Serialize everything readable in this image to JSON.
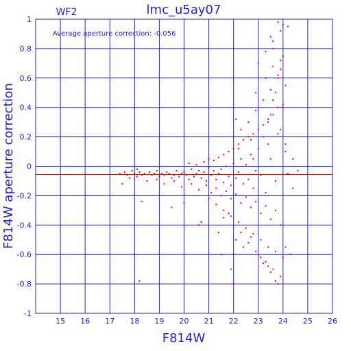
{
  "chart_data": {
    "type": "scatter",
    "title": "lmc_u5ay07",
    "panel_label": "WF2",
    "annotation": "Average aperture correction:  -0.056",
    "xlabel": "F814W",
    "ylabel": "F814W aperture correction",
    "xlim": [
      14,
      26
    ],
    "ylim": [
      -1,
      1
    ],
    "x_ticks": [
      "15",
      "16",
      "17",
      "18",
      "19",
      "20",
      "21",
      "22",
      "23",
      "24",
      "25",
      "26"
    ],
    "y_ticks": [
      "-1",
      "-0.8",
      "-0.6",
      "-0.4",
      "-0.2",
      "0",
      "0.2",
      "0.4",
      "0.6",
      "0.8",
      "1"
    ],
    "grid": true,
    "reference_lines": [
      {
        "y": 0,
        "color": "#0000cc"
      },
      {
        "y": -0.056,
        "color": "#dd0000"
      }
    ],
    "colors": {
      "axes": "#2222cc",
      "points": "#ee0000",
      "mean_line": "#dd0000"
    },
    "series": [
      {
        "x": [
          17.4,
          17.6,
          17.7,
          17.9,
          18.0,
          18.1,
          18.2,
          18.3,
          18.4,
          18.6,
          18.7,
          18.8,
          18.9,
          19.0,
          19.1,
          19.2,
          19.3,
          19.4,
          19.5,
          19.6,
          19.7,
          19.8,
          19.9,
          20.0,
          20.1,
          20.2,
          20.3,
          20.4,
          20.5,
          20.6,
          20.7,
          20.8,
          20.9,
          21.0,
          21.1,
          21.2,
          21.3,
          21.4,
          21.5,
          21.6,
          21.7,
          21.8,
          21.9,
          22.0,
          22.1,
          22.2,
          22.3,
          22.4,
          22.5,
          22.6,
          22.7,
          22.8,
          22.9,
          23.0,
          23.1,
          23.2,
          23.3,
          23.4,
          23.5,
          23.6,
          23.7,
          23.8,
          23.9,
          24.0,
          24.1,
          24.2,
          24.4,
          24.6,
          17.5,
          17.8,
          18.1,
          18.5,
          18.9,
          19.2,
          19.6,
          19.9,
          20.3,
          20.6,
          20.9,
          21.1,
          21.3,
          21.5,
          21.7,
          21.9,
          22.1,
          22.3,
          22.5,
          22.7,
          22.9,
          23.1,
          23.3,
          23.5,
          23.7,
          23.9,
          20.2,
          20.5,
          20.8,
          21.0,
          21.2,
          21.4,
          21.6,
          21.8,
          22.0,
          22.2,
          22.4,
          22.6,
          22.8,
          23.0,
          23.2,
          23.4,
          23.6,
          23.8,
          24.0,
          21.0,
          21.3,
          21.6,
          21.9,
          22.2,
          22.5,
          22.8,
          23.1,
          23.4,
          23.7,
          24.0,
          22.3,
          22.6,
          22.9,
          23.2,
          23.5,
          23.8,
          24.1,
          23.0,
          23.3,
          23.6,
          23.9,
          24.2,
          23.5,
          23.8,
          24.0,
          23.6,
          23.9,
          19.5,
          20.0,
          20.7,
          21.4,
          21.8,
          22.1,
          22.4,
          22.7,
          23.0,
          23.3,
          23.6,
          23.9,
          24.3,
          18.3,
          20.6,
          21.5,
          21.9,
          22.0,
          22.6,
          23.1,
          23.4,
          23.7,
          24.1,
          18.2,
          21.6,
          22.3,
          22.9,
          23.2,
          23.5,
          23.8,
          24.4,
          22.1,
          22.7,
          22.9,
          23.3,
          23.6,
          24.0,
          23.4,
          23.8,
          22.2,
          22.8,
          23.5,
          23.7,
          23.9,
          24.1
        ],
        "y": [
          -0.05,
          -0.04,
          -0.06,
          -0.03,
          -0.05,
          -0.07,
          -0.04,
          -0.06,
          -0.05,
          -0.04,
          -0.06,
          -0.05,
          -0.03,
          -0.07,
          -0.05,
          -0.06,
          -0.04,
          -0.05,
          -0.08,
          -0.06,
          -0.03,
          -0.07,
          -0.05,
          -0.04,
          -0.06,
          -0.09,
          -0.02,
          -0.07,
          -0.05,
          -0.03,
          -0.08,
          -0.04,
          -0.1,
          -0.01,
          -0.06,
          -0.03,
          -0.09,
          -0.05,
          -0.02,
          -0.11,
          0.0,
          -0.07,
          -0.13,
          0.02,
          -0.08,
          -0.04,
          0.05,
          -0.12,
          0.01,
          -0.09,
          0.08,
          -0.15,
          -0.03,
          0.12,
          -0.06,
          0.2,
          -0.18,
          0.3,
          0.05,
          0.45,
          -0.1,
          0.6,
          0.25,
          0.75,
          0.1,
          -0.05,
          0.05,
          -0.03,
          -0.12,
          -0.08,
          -0.02,
          -0.1,
          -0.09,
          -0.12,
          -0.1,
          -0.14,
          -0.12,
          -0.16,
          -0.13,
          -0.18,
          -0.15,
          -0.2,
          -0.17,
          -0.22,
          -0.19,
          -0.25,
          -0.21,
          -0.28,
          -0.24,
          -0.32,
          -0.27,
          -0.36,
          -0.3,
          -0.4,
          0.02,
          0.01,
          0.03,
          0.05,
          0.04,
          0.06,
          0.08,
          0.1,
          0.12,
          0.15,
          0.18,
          0.2,
          0.22,
          0.25,
          0.28,
          0.32,
          0.35,
          0.4,
          0.42,
          -0.22,
          -0.26,
          -0.3,
          -0.34,
          -0.38,
          -0.42,
          -0.46,
          -0.5,
          -0.55,
          -0.58,
          -0.62,
          0.25,
          0.3,
          0.38,
          0.45,
          0.52,
          0.62,
          0.55,
          0.7,
          0.78,
          0.85,
          0.92,
          0.95,
          0.88,
          0.98,
          0.96,
          0.8,
          0.72,
          -0.28,
          -0.25,
          -0.38,
          -0.45,
          -0.32,
          -0.5,
          -0.55,
          -0.48,
          -0.6,
          -0.65,
          -0.7,
          -0.75,
          -0.6,
          -0.24,
          -0.4,
          -0.6,
          -0.7,
          -0.8,
          -0.52,
          -0.62,
          -0.68,
          -0.78,
          -0.55,
          -0.78,
          -0.35,
          -0.45,
          -0.58,
          -0.66,
          -0.72,
          -0.8,
          -0.15,
          0.32,
          0.18,
          0.5,
          0.6,
          0.68,
          0.4,
          0.15,
          0.22,
          0.12,
          0.05,
          0.35,
          0.5,
          0.66,
          0.15
        ]
      }
    ]
  }
}
